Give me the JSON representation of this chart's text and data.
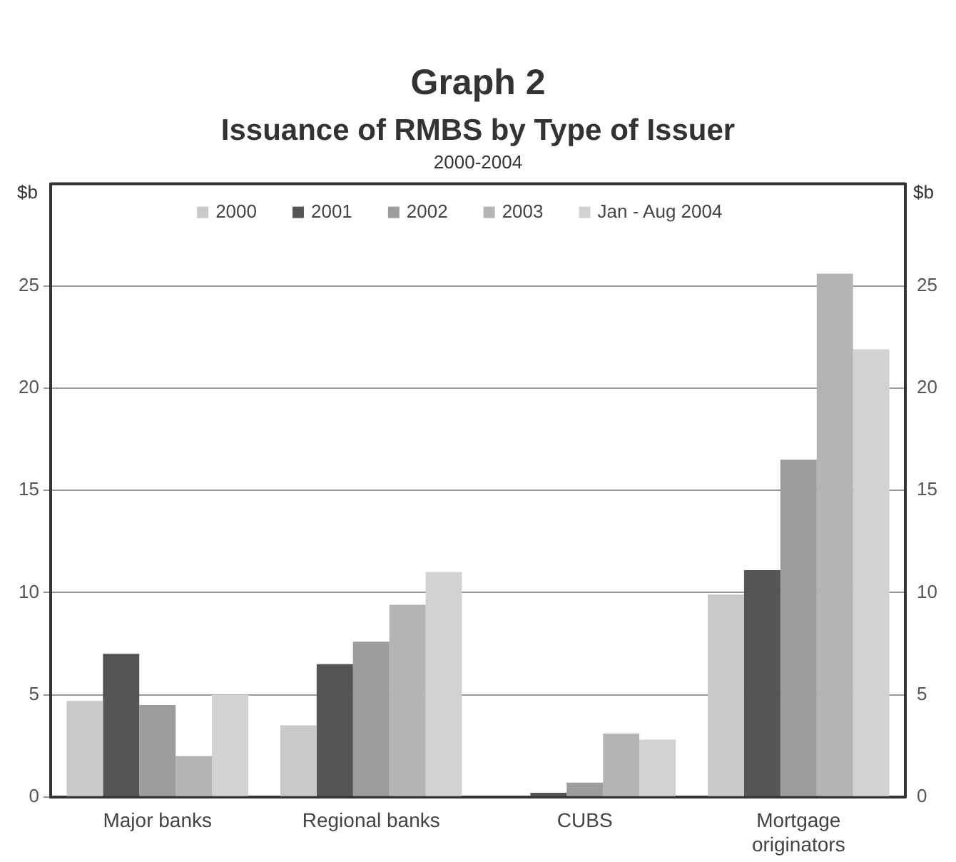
{
  "chart_data": {
    "type": "bar",
    "title": "Graph 2",
    "subtitle": "Issuance of RMBS by Type of Issuer",
    "annotations": [
      "2000-2004"
    ],
    "ylabel": "$b",
    "y2label": "$b",
    "categories": [
      "Major banks",
      "Regional banks",
      "CUBS",
      "Mortgage originators"
    ],
    "series": [
      {
        "name": "2000",
        "color": "#c9c9c9",
        "values": [
          4.7,
          3.5,
          0,
          9.9
        ]
      },
      {
        "name": "2001",
        "color": "#555555",
        "values": [
          7.0,
          6.5,
          0.2,
          11.1
        ]
      },
      {
        "name": "2002",
        "color": "#9c9c9c",
        "values": [
          4.5,
          7.6,
          0.7,
          16.5
        ]
      },
      {
        "name": "2003",
        "color": "#b4b4b4",
        "values": [
          2.0,
          9.4,
          3.1,
          25.6
        ]
      },
      {
        "name": "Jan - Aug 2004",
        "color": "#d2d2d2",
        "values": [
          5.0,
          11.0,
          2.8,
          21.9
        ]
      }
    ],
    "ylim": [
      0,
      30
    ],
    "yticks": [
      0,
      5,
      10,
      15,
      20,
      25
    ],
    "y2lim": [
      0,
      30
    ],
    "y2ticks": [
      0,
      5,
      10,
      15,
      20,
      25
    ],
    "grid": "y",
    "legend": "top"
  }
}
